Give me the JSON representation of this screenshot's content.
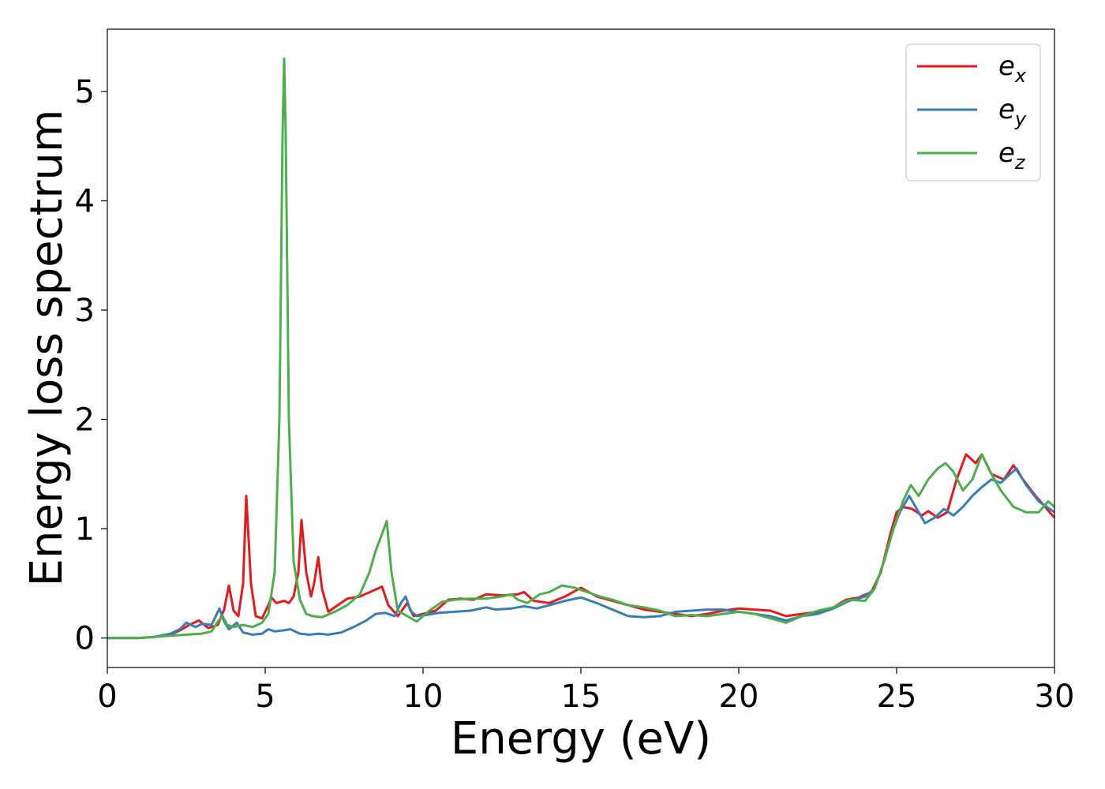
{
  "chart_data": {
    "type": "line",
    "xlabel": "Energy (eV)",
    "ylabel": "Energy loss spectrum",
    "xlim": [
      0,
      30
    ],
    "ylim": [
      -0.27,
      5.57
    ],
    "xticks": [
      "0",
      "5",
      "10",
      "15",
      "20",
      "25",
      "30"
    ],
    "yticks": [
      "0",
      "1",
      "2",
      "3",
      "4",
      "5"
    ],
    "grid": false,
    "legend_position": "top-right",
    "series": [
      {
        "name": "e_x",
        "legend_base": "e",
        "legend_sub": "x",
        "color": "#e41a1c",
        "points": [
          [
            0,
            0
          ],
          [
            1,
            0
          ],
          [
            1.5,
            0.01
          ],
          [
            2,
            0.03
          ],
          [
            2.3,
            0.07
          ],
          [
            2.6,
            0.12
          ],
          [
            2.9,
            0.16
          ],
          [
            3.2,
            0.09
          ],
          [
            3.5,
            0.12
          ],
          [
            3.7,
            0.26
          ],
          [
            3.85,
            0.48
          ],
          [
            4.0,
            0.25
          ],
          [
            4.15,
            0.2
          ],
          [
            4.3,
            0.5
          ],
          [
            4.4,
            1.3
          ],
          [
            4.55,
            0.5
          ],
          [
            4.7,
            0.2
          ],
          [
            4.9,
            0.18
          ],
          [
            5.1,
            0.3
          ],
          [
            5.2,
            0.37
          ],
          [
            5.35,
            0.32
          ],
          [
            5.6,
            0.34
          ],
          [
            5.75,
            0.32
          ],
          [
            5.9,
            0.38
          ],
          [
            6.05,
            0.6
          ],
          [
            6.15,
            1.08
          ],
          [
            6.3,
            0.6
          ],
          [
            6.45,
            0.38
          ],
          [
            6.55,
            0.5
          ],
          [
            6.68,
            0.74
          ],
          [
            6.8,
            0.45
          ],
          [
            7.0,
            0.24
          ],
          [
            7.3,
            0.3
          ],
          [
            7.6,
            0.36
          ],
          [
            8.0,
            0.38
          ],
          [
            8.4,
            0.43
          ],
          [
            8.7,
            0.47
          ],
          [
            8.9,
            0.3
          ],
          [
            9.2,
            0.2
          ],
          [
            9.5,
            0.32
          ],
          [
            9.7,
            0.2
          ],
          [
            10.0,
            0.22
          ],
          [
            10.4,
            0.25
          ],
          [
            10.8,
            0.35
          ],
          [
            11.2,
            0.36
          ],
          [
            11.6,
            0.35
          ],
          [
            12.0,
            0.4
          ],
          [
            12.5,
            0.39
          ],
          [
            13.0,
            0.4
          ],
          [
            13.2,
            0.42
          ],
          [
            13.5,
            0.34
          ],
          [
            14.0,
            0.32
          ],
          [
            14.5,
            0.38
          ],
          [
            15.0,
            0.46
          ],
          [
            15.5,
            0.38
          ],
          [
            16.0,
            0.34
          ],
          [
            16.5,
            0.3
          ],
          [
            17.0,
            0.26
          ],
          [
            17.5,
            0.24
          ],
          [
            18.0,
            0.22
          ],
          [
            18.5,
            0.2
          ],
          [
            19.0,
            0.22
          ],
          [
            19.5,
            0.25
          ],
          [
            20.0,
            0.27
          ],
          [
            20.5,
            0.26
          ],
          [
            21.0,
            0.25
          ],
          [
            21.5,
            0.2
          ],
          [
            22.0,
            0.22
          ],
          [
            22.5,
            0.24
          ],
          [
            23.0,
            0.28
          ],
          [
            23.4,
            0.35
          ],
          [
            23.8,
            0.37
          ],
          [
            24.2,
            0.42
          ],
          [
            24.5,
            0.6
          ],
          [
            24.8,
            0.95
          ],
          [
            25.0,
            1.15
          ],
          [
            25.2,
            1.2
          ],
          [
            25.5,
            1.18
          ],
          [
            25.8,
            1.12
          ],
          [
            26.0,
            1.16
          ],
          [
            26.3,
            1.1
          ],
          [
            26.6,
            1.15
          ],
          [
            26.9,
            1.45
          ],
          [
            27.2,
            1.68
          ],
          [
            27.5,
            1.6
          ],
          [
            27.7,
            1.68
          ],
          [
            28.0,
            1.5
          ],
          [
            28.4,
            1.45
          ],
          [
            28.7,
            1.58
          ],
          [
            29.0,
            1.45
          ],
          [
            29.4,
            1.3
          ],
          [
            29.7,
            1.2
          ],
          [
            30.0,
            1.1
          ]
        ]
      },
      {
        "name": "e_y",
        "legend_base": "e",
        "legend_sub": "y",
        "color": "#377eb8",
        "points": [
          [
            0,
            0
          ],
          [
            1,
            0
          ],
          [
            1.5,
            0.01
          ],
          [
            2,
            0.04
          ],
          [
            2.3,
            0.08
          ],
          [
            2.5,
            0.14
          ],
          [
            2.8,
            0.1
          ],
          [
            3.0,
            0.13
          ],
          [
            3.3,
            0.12
          ],
          [
            3.55,
            0.27
          ],
          [
            3.7,
            0.15
          ],
          [
            3.85,
            0.08
          ],
          [
            4.1,
            0.14
          ],
          [
            4.3,
            0.05
          ],
          [
            4.6,
            0.03
          ],
          [
            4.9,
            0.04
          ],
          [
            5.1,
            0.08
          ],
          [
            5.3,
            0.06
          ],
          [
            5.6,
            0.07
          ],
          [
            5.8,
            0.08
          ],
          [
            6.1,
            0.04
          ],
          [
            6.4,
            0.03
          ],
          [
            6.7,
            0.04
          ],
          [
            7.0,
            0.03
          ],
          [
            7.4,
            0.05
          ],
          [
            7.8,
            0.1
          ],
          [
            8.2,
            0.16
          ],
          [
            8.5,
            0.22
          ],
          [
            8.8,
            0.23
          ],
          [
            9.1,
            0.2
          ],
          [
            9.3,
            0.32
          ],
          [
            9.45,
            0.38
          ],
          [
            9.6,
            0.25
          ],
          [
            9.8,
            0.2
          ],
          [
            10.1,
            0.21
          ],
          [
            10.5,
            0.23
          ],
          [
            11.0,
            0.24
          ],
          [
            11.5,
            0.25
          ],
          [
            12.0,
            0.28
          ],
          [
            12.3,
            0.26
          ],
          [
            12.8,
            0.27
          ],
          [
            13.2,
            0.29
          ],
          [
            13.6,
            0.27
          ],
          [
            14.0,
            0.3
          ],
          [
            14.5,
            0.34
          ],
          [
            15.0,
            0.37
          ],
          [
            15.5,
            0.32
          ],
          [
            16.0,
            0.26
          ],
          [
            16.5,
            0.2
          ],
          [
            17.0,
            0.19
          ],
          [
            17.5,
            0.2
          ],
          [
            18.0,
            0.24
          ],
          [
            18.5,
            0.25
          ],
          [
            19.0,
            0.26
          ],
          [
            19.5,
            0.26
          ],
          [
            20.0,
            0.24
          ],
          [
            20.5,
            0.22
          ],
          [
            21.0,
            0.2
          ],
          [
            21.5,
            0.16
          ],
          [
            22.0,
            0.2
          ],
          [
            22.5,
            0.22
          ],
          [
            23.0,
            0.27
          ],
          [
            23.5,
            0.34
          ],
          [
            24.0,
            0.38
          ],
          [
            24.3,
            0.45
          ],
          [
            24.6,
            0.7
          ],
          [
            24.9,
            1.0
          ],
          [
            25.1,
            1.15
          ],
          [
            25.4,
            1.3
          ],
          [
            25.6,
            1.2
          ],
          [
            25.9,
            1.05
          ],
          [
            26.2,
            1.1
          ],
          [
            26.5,
            1.18
          ],
          [
            26.8,
            1.12
          ],
          [
            27.1,
            1.2
          ],
          [
            27.4,
            1.3
          ],
          [
            27.7,
            1.38
          ],
          [
            28.0,
            1.45
          ],
          [
            28.3,
            1.42
          ],
          [
            28.6,
            1.5
          ],
          [
            28.8,
            1.55
          ],
          [
            29.1,
            1.4
          ],
          [
            29.5,
            1.25
          ],
          [
            30.0,
            1.15
          ]
        ]
      },
      {
        "name": "e_z",
        "legend_base": "e",
        "legend_sub": "z",
        "color": "#4daf4a",
        "points": [
          [
            0,
            0
          ],
          [
            1,
            0
          ],
          [
            1.5,
            0.01
          ],
          [
            2,
            0.02
          ],
          [
            2.5,
            0.03
          ],
          [
            3.0,
            0.04
          ],
          [
            3.3,
            0.06
          ],
          [
            3.5,
            0.15
          ],
          [
            3.65,
            0.2
          ],
          [
            3.8,
            0.12
          ],
          [
            4.0,
            0.1
          ],
          [
            4.3,
            0.12
          ],
          [
            4.6,
            0.1
          ],
          [
            4.9,
            0.14
          ],
          [
            5.1,
            0.22
          ],
          [
            5.3,
            0.6
          ],
          [
            5.45,
            2.0
          ],
          [
            5.55,
            4.6
          ],
          [
            5.6,
            5.3
          ],
          [
            5.65,
            4.6
          ],
          [
            5.75,
            2.0
          ],
          [
            5.9,
            0.7
          ],
          [
            6.1,
            0.35
          ],
          [
            6.3,
            0.22
          ],
          [
            6.5,
            0.2
          ],
          [
            6.8,
            0.19
          ],
          [
            7.2,
            0.24
          ],
          [
            7.6,
            0.3
          ],
          [
            8.0,
            0.4
          ],
          [
            8.3,
            0.6
          ],
          [
            8.5,
            0.8
          ],
          [
            8.7,
            0.95
          ],
          [
            8.85,
            1.07
          ],
          [
            9.0,
            0.6
          ],
          [
            9.2,
            0.25
          ],
          [
            9.5,
            0.2
          ],
          [
            9.8,
            0.15
          ],
          [
            10.2,
            0.25
          ],
          [
            10.6,
            0.33
          ],
          [
            11.0,
            0.35
          ],
          [
            11.5,
            0.36
          ],
          [
            12.0,
            0.36
          ],
          [
            12.5,
            0.38
          ],
          [
            12.8,
            0.4
          ],
          [
            13.0,
            0.35
          ],
          [
            13.3,
            0.32
          ],
          [
            13.7,
            0.4
          ],
          [
            14.0,
            0.42
          ],
          [
            14.4,
            0.48
          ],
          [
            14.8,
            0.46
          ],
          [
            15.2,
            0.42
          ],
          [
            15.6,
            0.38
          ],
          [
            16.0,
            0.35
          ],
          [
            16.5,
            0.3
          ],
          [
            17.0,
            0.28
          ],
          [
            17.5,
            0.25
          ],
          [
            18.0,
            0.2
          ],
          [
            18.5,
            0.21
          ],
          [
            19.0,
            0.2
          ],
          [
            19.5,
            0.22
          ],
          [
            20.0,
            0.24
          ],
          [
            20.5,
            0.22
          ],
          [
            21.0,
            0.18
          ],
          [
            21.5,
            0.14
          ],
          [
            22.0,
            0.2
          ],
          [
            22.5,
            0.25
          ],
          [
            23.0,
            0.28
          ],
          [
            23.5,
            0.35
          ],
          [
            24.0,
            0.34
          ],
          [
            24.3,
            0.45
          ],
          [
            24.6,
            0.7
          ],
          [
            24.9,
            1.0
          ],
          [
            25.2,
            1.25
          ],
          [
            25.45,
            1.4
          ],
          [
            25.7,
            1.3
          ],
          [
            26.0,
            1.45
          ],
          [
            26.3,
            1.55
          ],
          [
            26.55,
            1.6
          ],
          [
            26.8,
            1.52
          ],
          [
            27.1,
            1.35
          ],
          [
            27.4,
            1.45
          ],
          [
            27.7,
            1.68
          ],
          [
            28.0,
            1.5
          ],
          [
            28.3,
            1.35
          ],
          [
            28.7,
            1.2
          ],
          [
            29.1,
            1.15
          ],
          [
            29.5,
            1.15
          ],
          [
            29.8,
            1.25
          ],
          [
            30.0,
            1.2
          ]
        ]
      }
    ]
  }
}
